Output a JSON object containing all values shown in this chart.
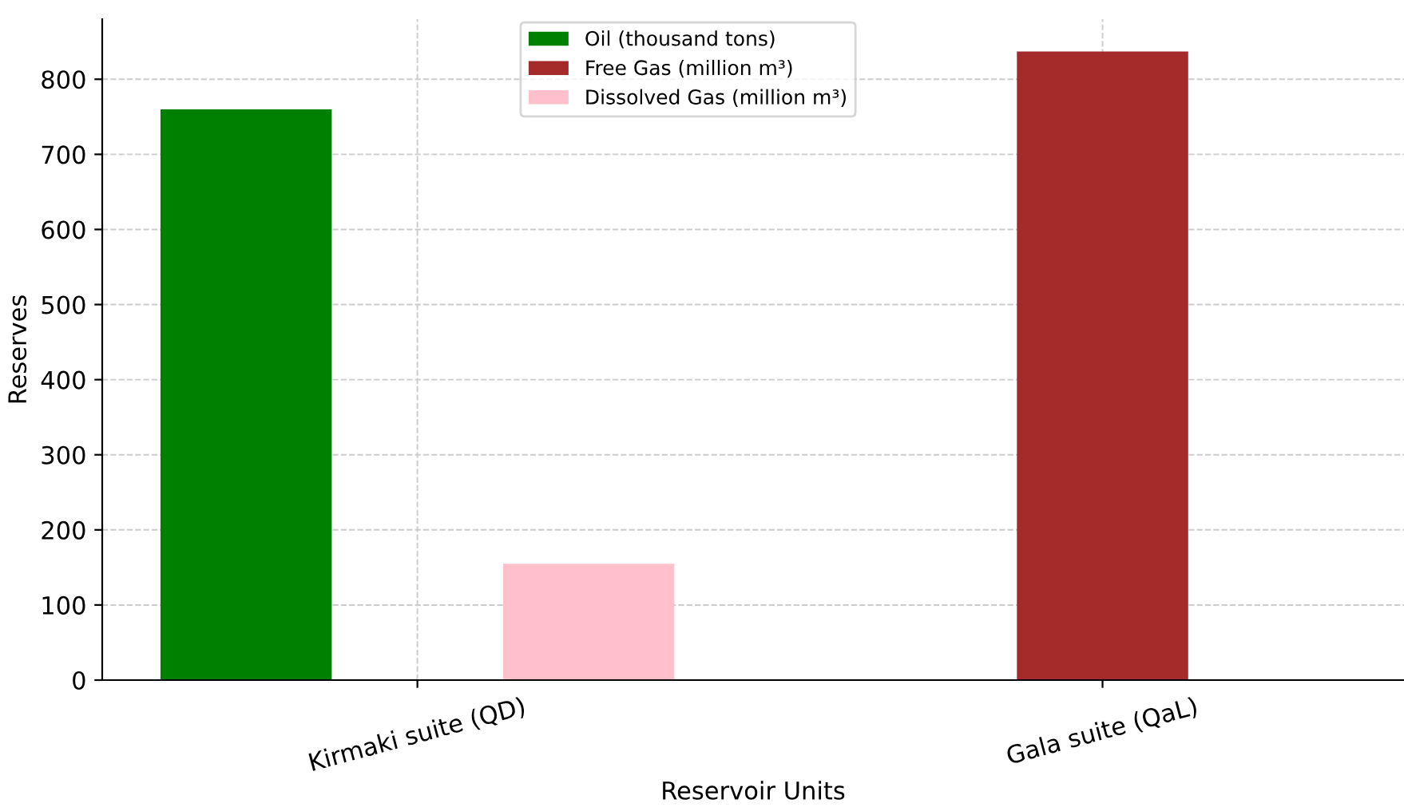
{
  "chart_data": {
    "type": "bar",
    "xlabel": "Reservoir Units",
    "ylabel": "Reserves",
    "categories": [
      "Kirmaki suite (QD)",
      "Gala suite (QaL)"
    ],
    "series": [
      {
        "name": "Oil (thousand tons)",
        "color": "#008000",
        "values": [
          760,
          null
        ]
      },
      {
        "name": "Free Gas (million m³)",
        "color": "#a52a2a",
        "values": [
          null,
          837
        ]
      },
      {
        "name": "Dissolved Gas (million m³)",
        "color": "#ffc0cb",
        "values": [
          155,
          null
        ]
      }
    ],
    "ylim": [
      0,
      880
    ],
    "yticks": [
      0,
      100,
      200,
      300,
      400,
      500,
      600,
      700,
      800
    ],
    "grid": true,
    "legend": "top"
  }
}
